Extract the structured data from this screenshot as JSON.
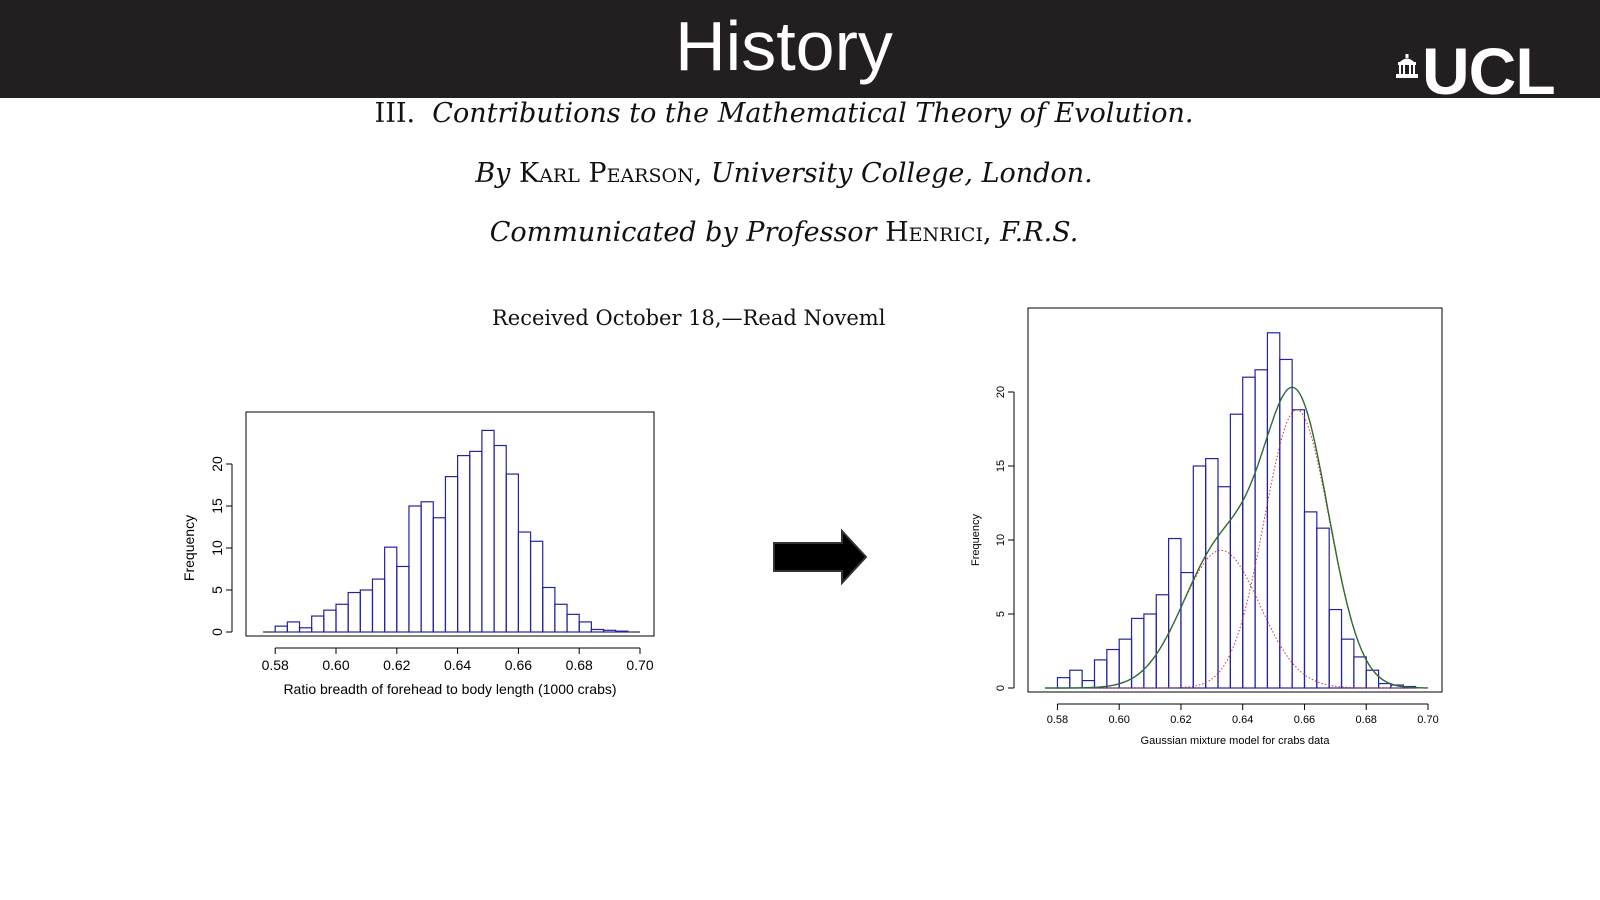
{
  "header": {
    "title": "History",
    "logo_text": "UCL",
    "background": "#231f20"
  },
  "paper": {
    "line1_num": "III.",
    "line1_title": "Contributions to the Mathematical Theory of Evolution.",
    "line2_by": "By",
    "line2_name": "Karl Pearson",
    "line2_aff": "University College, London.",
    "line3_comm": "Communicated by Professor",
    "line3_name": "Henrici",
    "line3_frs": "F.R.S.",
    "line4": "Received October 18,—Read Noveml"
  },
  "arrow": {
    "icon": "right-arrow-icon",
    "color": "#000000"
  },
  "chart_data": [
    {
      "type": "histogram",
      "title": "",
      "xlabel": "Ratio breadth of forehead to body length (1000 crabs)",
      "ylabel": "Frequency",
      "xlim": [
        0.575,
        0.7
      ],
      "ylim": [
        0,
        25
      ],
      "xticks": [
        "0.58",
        "0.60",
        "0.62",
        "0.64",
        "0.66",
        "0.68",
        "0.70"
      ],
      "yticks": [
        "0",
        "5",
        "10",
        "15",
        "20"
      ],
      "bin_edges": [
        0.58,
        0.584,
        0.588,
        0.592,
        0.596,
        0.6,
        0.604,
        0.608,
        0.612,
        0.616,
        0.62,
        0.624,
        0.628,
        0.632,
        0.636,
        0.64,
        0.644,
        0.648,
        0.652,
        0.656,
        0.66,
        0.664,
        0.668,
        0.672,
        0.676,
        0.68,
        0.684,
        0.688,
        0.692,
        0.696
      ],
      "counts": [
        0.7,
        1.2,
        0.5,
        1.9,
        2.6,
        3.3,
        4.7,
        5.0,
        6.3,
        10.1,
        7.8,
        15.0,
        15.5,
        13.6,
        18.5,
        21.0,
        21.5,
        24.0,
        22.2,
        18.8,
        11.9,
        10.8,
        5.3,
        3.3,
        2.1,
        1.2,
        0.3,
        0.2,
        0.1
      ],
      "line_color": "#2323a0",
      "grid": false
    },
    {
      "type": "histogram",
      "title": "",
      "xlabel": "Gaussian mixture model for crabs data",
      "ylabel": "Frequency",
      "xlim": [
        0.575,
        0.7
      ],
      "ylim": [
        0,
        25
      ],
      "xticks": [
        "0.58",
        "0.60",
        "0.62",
        "0.64",
        "0.66",
        "0.68",
        "0.70"
      ],
      "yticks": [
        "0",
        "5",
        "10",
        "15",
        "20"
      ],
      "bin_edges": [
        0.58,
        0.584,
        0.588,
        0.592,
        0.596,
        0.6,
        0.604,
        0.608,
        0.612,
        0.616,
        0.62,
        0.624,
        0.628,
        0.632,
        0.636,
        0.64,
        0.644,
        0.648,
        0.652,
        0.656,
        0.66,
        0.664,
        0.668,
        0.672,
        0.676,
        0.68,
        0.684,
        0.688,
        0.692,
        0.696
      ],
      "counts": [
        0.7,
        1.2,
        0.5,
        1.9,
        2.6,
        3.3,
        4.7,
        5.0,
        6.3,
        10.1,
        7.8,
        15.0,
        15.5,
        13.6,
        18.5,
        21.0,
        21.5,
        24.0,
        22.2,
        18.8,
        11.9,
        10.8,
        5.3,
        3.3,
        2.1,
        1.2,
        0.3,
        0.2,
        0.1
      ],
      "line_color": "#2323a0",
      "components": [
        {
          "mean": 0.633,
          "sd": 0.0125,
          "peak": 9.3,
          "color": "#cc3333",
          "style": "dotted"
        },
        {
          "mean": 0.6575,
          "sd": 0.0105,
          "peak": 18.8,
          "color": "#cc3333",
          "style": "dotted"
        }
      ],
      "mixture_color": "#2f6b2f",
      "grid": false
    }
  ]
}
